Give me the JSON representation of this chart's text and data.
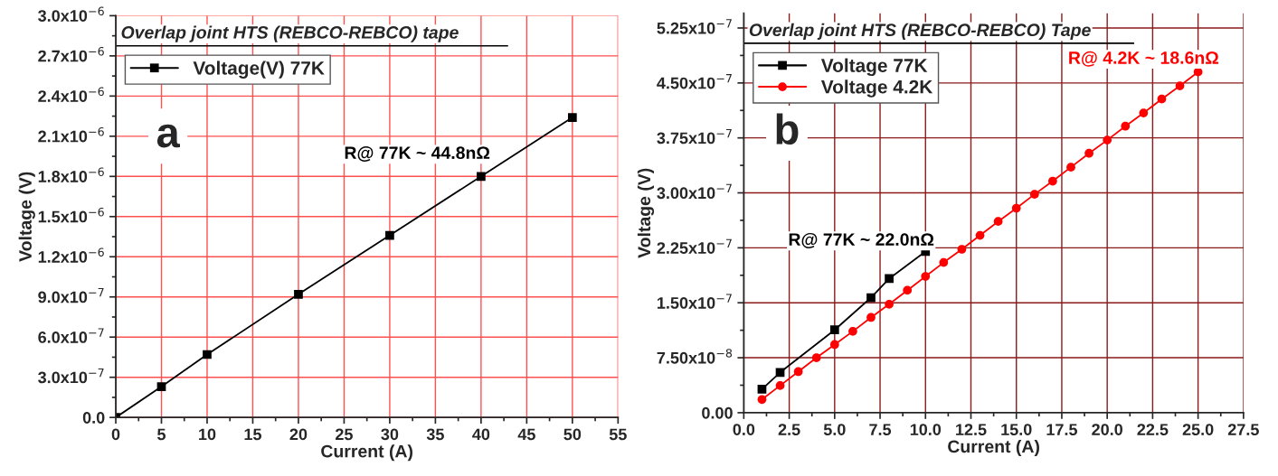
{
  "chart_data": [
    {
      "type": "line",
      "title": "Overlap joint HTS (REBCO-REBCO) tape",
      "xlabel": "Current (A)",
      "ylabel": "Voltage (V)",
      "x": [
        0,
        5,
        10,
        20,
        30,
        40,
        50
      ],
      "series": [
        {
          "name": "Voltage(V) 77K",
          "color": "#000000",
          "values": [
            0,
            2.3e-07,
            4.7e-07,
            9.2e-07,
            1.36e-06,
            1.8e-06,
            2.24e-06
          ]
        }
      ],
      "xlim": [
        0,
        55
      ],
      "xticks": [
        0,
        5,
        10,
        15,
        20,
        25,
        30,
        35,
        40,
        45,
        50,
        55
      ],
      "ylim": [
        0,
        3e-06
      ],
      "yticks": [
        {
          "value": 0,
          "label": "0.0"
        },
        {
          "value": 3e-07,
          "label": "3.0x10$^{−7}$"
        },
        {
          "value": 6e-07,
          "label": "6.0x10$^{−7}$"
        },
        {
          "value": 9e-07,
          "label": "9.0x10$^{−7}$"
        },
        {
          "value": 1.2e-06,
          "label": "1.2x10$^{−6}$"
        },
        {
          "value": 1.5e-06,
          "label": "1.5x10$^{−6}$"
        },
        {
          "value": 1.8e-06,
          "label": "1.8x10$^{−6}$"
        },
        {
          "value": 2.1e-06,
          "label": "2.1x10$^{−6}$"
        },
        {
          "value": 2.4e-06,
          "label": "2.4x10$^{−6}$"
        },
        {
          "value": 2.7e-06,
          "label": "2.7x10$^{−6}$"
        },
        {
          "value": 3e-06,
          "label": "3.0x10$^{−6}$"
        }
      ],
      "annotations": [
        "a",
        "R@ 77K ~ 44.8nΩ"
      ],
      "grid": true,
      "legend": "top left",
      "marker": "square",
      "line_style": "solid"
    },
    {
      "type": "line",
      "title": "Overlap joint HTS (REBCO-REBCO) Tape",
      "xlabel": "Current (A)",
      "ylabel": "Voltage (V)",
      "series": [
        {
          "name": "Voltage 77K",
          "color": "#000000",
          "marker": "square",
          "x": [
            1,
            2,
            5,
            7,
            8,
            10
          ],
          "values": [
            3.2e-08,
            5.5e-08,
            1.13e-07,
            1.57e-07,
            1.83e-07,
            2.2e-07
          ]
        },
        {
          "name": "Voltage 4.2K",
          "color": "#ff0000",
          "marker": "circle",
          "x": [
            1,
            2,
            3,
            4,
            5,
            6,
            7,
            8,
            9,
            10,
            11,
            12,
            13,
            14,
            15,
            16,
            17,
            18,
            19,
            20,
            21,
            22,
            23,
            24,
            25
          ],
          "values": [
            1.8e-08,
            3.7e-08,
            5.6e-08,
            7.5e-08,
            9.3e-08,
            1.11e-07,
            1.3e-07,
            1.48e-07,
            1.67e-07,
            1.86e-07,
            2.05e-07,
            2.23e-07,
            2.42e-07,
            2.61e-07,
            2.79e-07,
            2.98e-07,
            3.16e-07,
            3.35e-07,
            3.54e-07,
            3.72e-07,
            3.91e-07,
            4.09e-07,
            4.28e-07,
            4.46e-07,
            4.65e-07
          ]
        }
      ],
      "xlim": [
        0,
        27.5
      ],
      "xticks": [
        {
          "value": 0,
          "label": "0.0"
        },
        {
          "value": 2.5,
          "label": "2.5"
        },
        {
          "value": 5,
          "label": "5.0"
        },
        {
          "value": 7.5,
          "label": "7.5"
        },
        {
          "value": 10,
          "label": "10.0"
        },
        {
          "value": 12.5,
          "label": "12.5"
        },
        {
          "value": 15,
          "label": "15.0"
        },
        {
          "value": 17.5,
          "label": "17.5"
        },
        {
          "value": 20,
          "label": "20.0"
        },
        {
          "value": 22.5,
          "label": "22.5"
        },
        {
          "value": 25,
          "label": "25.0"
        },
        {
          "value": 27.5,
          "label": "27.5"
        }
      ],
      "ylim": [
        0,
        5.45e-07
      ],
      "yticks": [
        {
          "value": 0,
          "label": "0.00"
        },
        {
          "value": 7.5e-08,
          "label": "7.50x10$^{−8}$"
        },
        {
          "value": 1.5e-07,
          "label": "1.50x10$^{−7}$"
        },
        {
          "value": 2.25e-07,
          "label": "2.25x10$^{−7}$"
        },
        {
          "value": 3e-07,
          "label": "3.00x10$^{−7}$"
        },
        {
          "value": 3.75e-07,
          "label": "3.75x10$^{−7}$"
        },
        {
          "value": 4.5e-07,
          "label": "4.50x10$^{−7}$"
        },
        {
          "value": 5.25e-07,
          "label": "5.25x10$^{−7}$"
        }
      ],
      "annotations": [
        "b",
        "R@ 77K ~ 22.0nΩ",
        "R@ 4.2K ~ 18.6nΩ"
      ],
      "grid": true,
      "legend": "top left",
      "line_style": "solid"
    }
  ]
}
